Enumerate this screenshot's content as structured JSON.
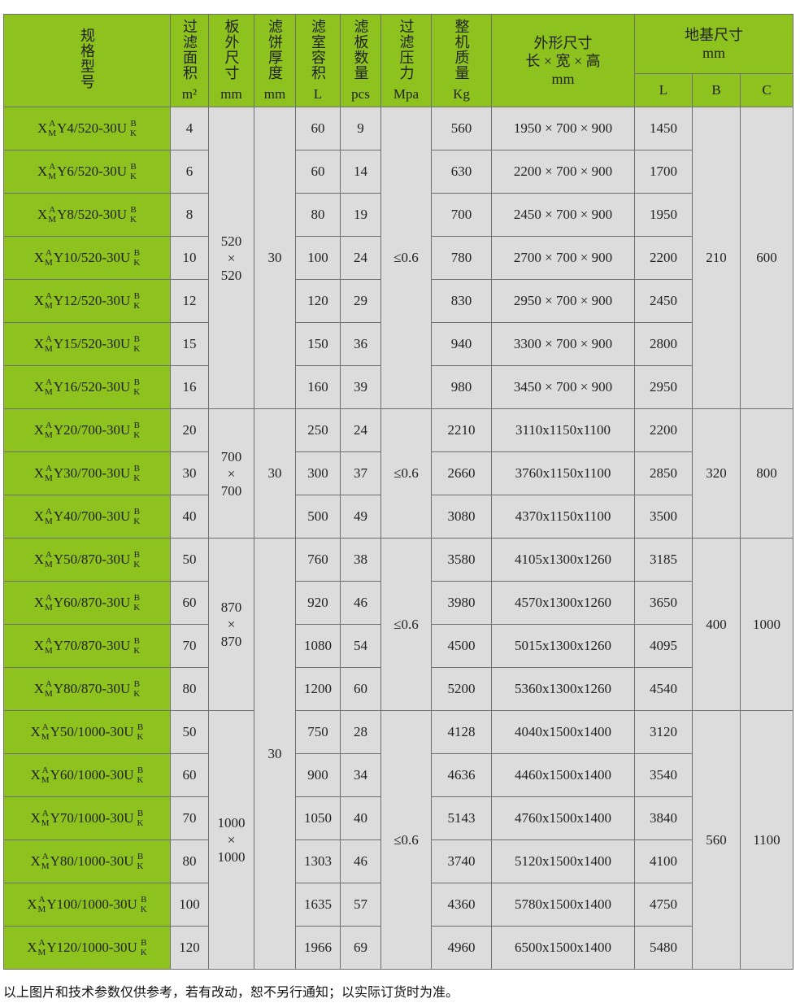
{
  "header": {
    "model": "规格型号",
    "area": {
      "label": "过滤面积",
      "unit": "m²"
    },
    "plate_size": {
      "label": "板外尺寸",
      "unit": "mm"
    },
    "cake": {
      "label": "滤饼厚度",
      "unit": "mm"
    },
    "volume": {
      "label": "滤室容积",
      "unit": "L"
    },
    "plates": {
      "label": "滤板数量",
      "unit": "pcs"
    },
    "pressure": {
      "label": "过滤压力",
      "unit": "Mpa"
    },
    "weight": {
      "label": "整机质量",
      "unit": "Kg"
    },
    "dims": {
      "line1": "外形尺寸",
      "line2": "长 × 宽 × 高",
      "unit": "mm"
    },
    "foundation": {
      "label": "地基尺寸",
      "unit": "mm",
      "L": "L",
      "B": "B",
      "C": "C"
    }
  },
  "model_parts": {
    "x": "X",
    "sup": "A",
    "sub": "M",
    "top": "B",
    "bottom": "K"
  },
  "groups": [
    {
      "plate": [
        "520",
        "×",
        "520"
      ],
      "pressure": "≤0.6",
      "B": "210",
      "C": "600",
      "rows": [
        {
          "model": "Y4/520-30U",
          "area": "4",
          "volume": "60",
          "plates": "9",
          "weight": "560",
          "dims": "1950 × 700 × 900",
          "L": "1450"
        },
        {
          "model": "Y6/520-30U",
          "area": "6",
          "volume": "60",
          "plates": "14",
          "weight": "630",
          "dims": "2200 × 700 × 900",
          "L": "1700"
        },
        {
          "model": "Y8/520-30U",
          "area": "8",
          "volume": "80",
          "plates": "19",
          "weight": "700",
          "dims": "2450 × 700 × 900",
          "L": "1950"
        },
        {
          "model": "Y10/520-30U",
          "area": "10",
          "volume": "100",
          "plates": "24",
          "weight": "780",
          "dims": "2700 × 700 × 900",
          "L": "2200"
        },
        {
          "model": "Y12/520-30U",
          "area": "12",
          "volume": "120",
          "plates": "29",
          "weight": "830",
          "dims": "2950 × 700 × 900",
          "L": "2450"
        },
        {
          "model": "Y15/520-30U",
          "area": "15",
          "volume": "150",
          "plates": "36",
          "weight": "940",
          "dims": "3300 × 700 × 900",
          "L": "2800"
        },
        {
          "model": "Y16/520-30U",
          "area": "16",
          "volume": "160",
          "plates": "39",
          "weight": "980",
          "dims": "3450 × 700 × 900",
          "L": "2950"
        }
      ]
    },
    {
      "plate": [
        "700",
        "×",
        "700"
      ],
      "pressure": "≤0.6",
      "B": "320",
      "C": "800",
      "rows": [
        {
          "model": "Y20/700-30U",
          "area": "20",
          "volume": "250",
          "plates": "24",
          "weight": "2210",
          "dims": "3110x1150x1100",
          "L": "2200"
        },
        {
          "model": "Y30/700-30U",
          "area": "30",
          "volume": "300",
          "plates": "37",
          "weight": "2660",
          "dims": "3760x1150x1100",
          "L": "2850"
        },
        {
          "model": "Y40/700-30U",
          "area": "40",
          "volume": "500",
          "plates": "49",
          "weight": "3080",
          "dims": "4370x1150x1100",
          "L": "3500"
        }
      ]
    },
    {
      "plate": [
        "870",
        "×",
        "870"
      ],
      "pressure": "≤0.6",
      "B": "400",
      "C": "1000",
      "rows": [
        {
          "model": "Y50/870-30U",
          "area": "50",
          "volume": "760",
          "plates": "38",
          "weight": "3580",
          "dims": "4105x1300x1260",
          "L": "3185"
        },
        {
          "model": "Y60/870-30U",
          "area": "60",
          "volume": "920",
          "plates": "46",
          "weight": "3980",
          "dims": "4570x1300x1260",
          "L": "3650"
        },
        {
          "model": "Y70/870-30U",
          "area": "70",
          "volume": "1080",
          "plates": "54",
          "weight": "4500",
          "dims": "5015x1300x1260",
          "L": "4095"
        },
        {
          "model": "Y80/870-30U",
          "area": "80",
          "volume": "1200",
          "plates": "60",
          "weight": "5200",
          "dims": "5360x1300x1260",
          "L": "4540"
        }
      ]
    },
    {
      "plate": [
        "1000",
        "×",
        "1000"
      ],
      "pressure": "≤0.6",
      "B": "560",
      "C": "1100",
      "rows": [
        {
          "model": "Y50/1000-30U",
          "area": "50",
          "volume": "750",
          "plates": "28",
          "weight": "4128",
          "dims": "4040x1500x1400",
          "L": "3120"
        },
        {
          "model": "Y60/1000-30U",
          "area": "60",
          "volume": "900",
          "plates": "34",
          "weight": "4636",
          "dims": "4460x1500x1400",
          "L": "3540"
        },
        {
          "model": "Y70/1000-30U",
          "area": "70",
          "volume": "1050",
          "plates": "40",
          "weight": "5143",
          "dims": "4760x1500x1400",
          "L": "3840"
        },
        {
          "model": "Y80/1000-30U",
          "area": "80",
          "volume": "1303",
          "plates": "46",
          "weight": "3740",
          "dims": "5120x1500x1400",
          "L": "4100"
        },
        {
          "model": "Y100/1000-30U",
          "area": "100",
          "volume": "1635",
          "plates": "57",
          "weight": "4360",
          "dims": "5780x1500x1400",
          "L": "4750"
        },
        {
          "model": "Y120/1000-30U",
          "area": "120",
          "volume": "1966",
          "plates": "69",
          "weight": "4960",
          "dims": "6500x1500x1400",
          "L": "5480"
        }
      ]
    }
  ],
  "cake_groups": [
    {
      "value": "30",
      "span_groups": [
        0
      ]
    },
    {
      "value": "30",
      "span_groups": [
        1
      ]
    },
    {
      "value": "30",
      "span_groups": [
        2,
        3
      ]
    }
  ],
  "footer": "以上图片和技术参数仅供参考，若有改动，恕不另行通知；以实际订货时为准。"
}
